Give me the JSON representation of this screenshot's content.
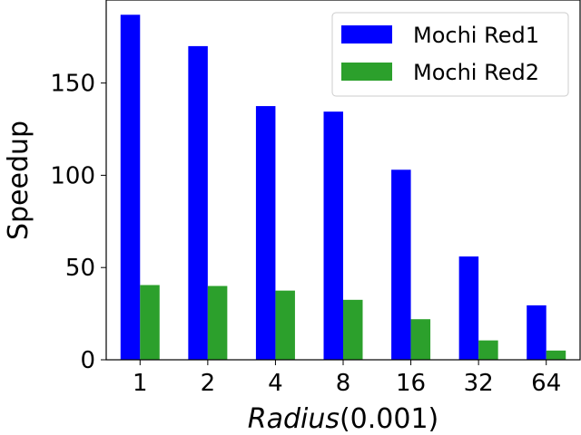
{
  "chart_data": {
    "type": "bar",
    "categories": [
      "1",
      "2",
      "4",
      "8",
      "16",
      "32",
      "64"
    ],
    "series": [
      {
        "name": "Mochi Red1",
        "color": "#0000ff",
        "values": [
          187,
          170,
          137.5,
          134.5,
          103,
          56,
          29.5
        ]
      },
      {
        "name": "Mochi Red2",
        "color": "#2ca02c",
        "values": [
          40.5,
          40,
          37.5,
          32.5,
          22,
          10.5,
          5
        ]
      }
    ],
    "xlabel_italic": "Radius",
    "xlabel_suffix": "(0.001)",
    "ylabel": "Speedup",
    "ylim": [
      0,
      195
    ],
    "yticks": [
      0,
      50,
      100,
      150
    ],
    "grid": false,
    "legend": "top-right"
  }
}
